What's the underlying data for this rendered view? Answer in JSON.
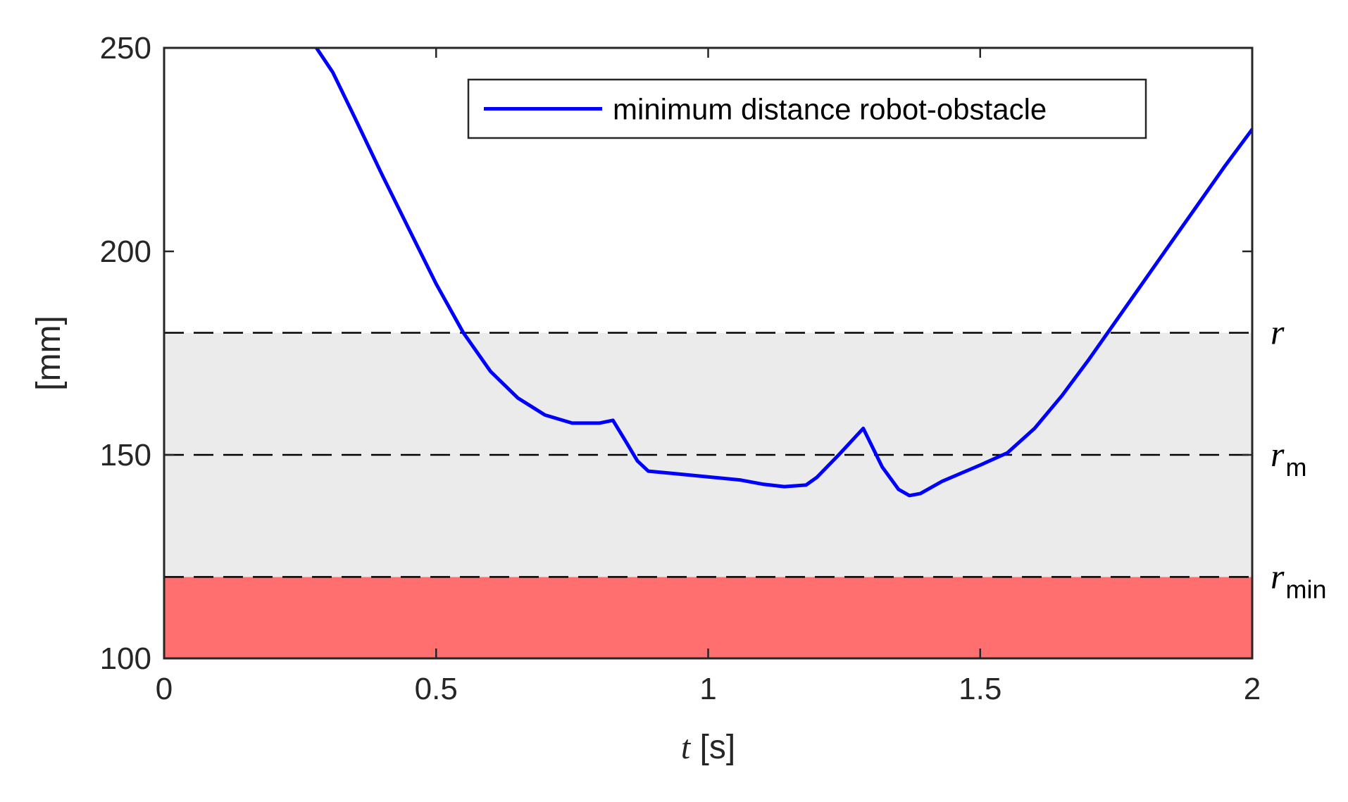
{
  "chart_data": {
    "type": "line",
    "xlabel_var": "t",
    "xlabel_unit": "[s]",
    "ylabel": "[mm]",
    "xlim": [
      0,
      2
    ],
    "ylim": [
      100,
      250
    ],
    "x_ticks": [
      0,
      0.5,
      1,
      1.5,
      2
    ],
    "x_tick_labels": [
      "0",
      "0.5",
      "1",
      "1.5",
      "2"
    ],
    "y_ticks": [
      100,
      150,
      200,
      250
    ],
    "y_tick_labels": [
      "100",
      "150",
      "200",
      "250"
    ],
    "grid": false,
    "legend_position": "top-center",
    "series": [
      {
        "name": "minimum distance robot-obstacle",
        "color": "#0000ff",
        "x": [
          0.28,
          0.31,
          0.35,
          0.4,
          0.45,
          0.5,
          0.55,
          0.6,
          0.65,
          0.7,
          0.75,
          0.8,
          0.825,
          0.85,
          0.87,
          0.89,
          0.93,
          1.0,
          1.06,
          1.1,
          1.14,
          1.18,
          1.2,
          1.24,
          1.285,
          1.32,
          1.35,
          1.37,
          1.39,
          1.43,
          1.5,
          1.55,
          1.6,
          1.65,
          1.7,
          1.75,
          1.8,
          1.85,
          1.9,
          1.95,
          2.0
        ],
        "y": [
          250,
          244,
          233,
          219,
          205.5,
          192,
          180,
          170.5,
          164,
          159.8,
          157.8,
          157.8,
          158.5,
          153,
          148.5,
          146,
          145.5,
          144.6,
          143.8,
          142.8,
          142.2,
          142.6,
          144.5,
          150,
          156.5,
          147,
          141.5,
          140,
          140.5,
          143.5,
          147.5,
          150.5,
          156.5,
          164.5,
          173.5,
          183,
          192.5,
          202,
          211.5,
          221,
          230
        ]
      }
    ],
    "bands": [
      {
        "from": 100,
        "to": 120,
        "color": "#ff6f6f"
      },
      {
        "from": 120,
        "to": 180,
        "color": "#ebebeb"
      }
    ],
    "reference_lines": [
      {
        "y": 180,
        "label": "r",
        "subscript": ""
      },
      {
        "y": 150,
        "label": "r",
        "subscript": "m"
      },
      {
        "y": 120,
        "label": "r",
        "subscript": "min"
      }
    ]
  }
}
